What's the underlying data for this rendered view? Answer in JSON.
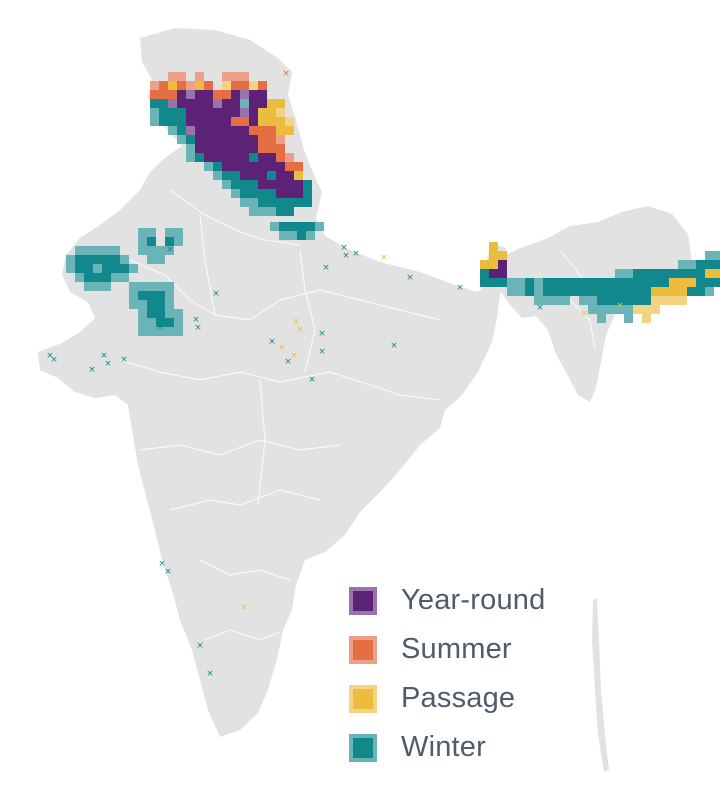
{
  "map": {
    "land_color": "#e2e2e2",
    "border_color": "#ffffff",
    "background": "#ffffff"
  },
  "legend": {
    "items": [
      {
        "label": "Year-round",
        "color": "#5c2275",
        "border": "#9a72ad"
      },
      {
        "label": "Summer",
        "color": "#e56f45",
        "border": "#eda087"
      },
      {
        "label": "Passage",
        "color": "#ebbc3e",
        "border": "#f2d484"
      },
      {
        "label": "Winter",
        "color": "#10888c",
        "border": "#6ab3b6"
      }
    ]
  }
}
